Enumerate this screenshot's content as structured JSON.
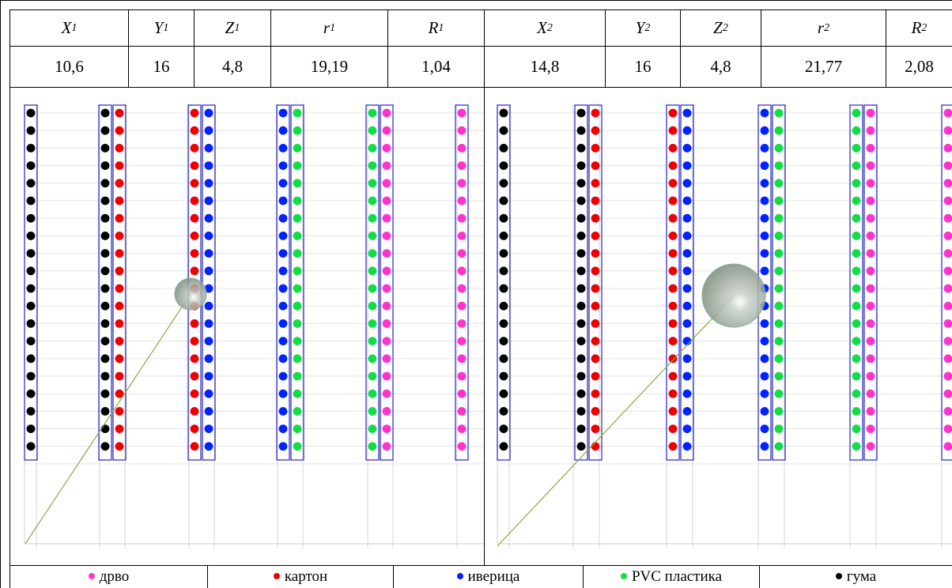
{
  "table": {
    "headers": [
      {
        "var": "X",
        "sub": "1"
      },
      {
        "var": "Y",
        "sub": "1"
      },
      {
        "var": "Z",
        "sub": "1"
      },
      {
        "var": "r",
        "sub": "1"
      },
      {
        "var": "R",
        "sub": "1"
      },
      {
        "var": "X",
        "sub": "2"
      },
      {
        "var": "Y",
        "sub": "2"
      },
      {
        "var": "Z",
        "sub": "2"
      },
      {
        "var": "r",
        "sub": "2"
      },
      {
        "var": "R",
        "sub": "2"
      }
    ],
    "values": [
      "10,6",
      "16",
      "4,8",
      "19,19",
      "1,04",
      "14,8",
      "16",
      "4,8",
      "21,77",
      "2,08"
    ]
  },
  "legend": [
    {
      "label": "дрво",
      "color": "#ff33cc"
    },
    {
      "label": "картон",
      "color": "#ee0000"
    },
    {
      "label": "иверица",
      "color": "#0022ff"
    },
    {
      "label": "PVC пластика",
      "color": "#11dd44"
    },
    {
      "label": "гума",
      "color": "#000000"
    }
  ],
  "colors": {
    "rubber": "#000000",
    "cardboard": "#ee0000",
    "chipboard": "#0022ff",
    "pvc": "#11dd44",
    "wood": "#ff33cc",
    "column_border": "#3333cc",
    "vector_line": "#88aa44",
    "sphere": "#b8c6b8"
  }
}
